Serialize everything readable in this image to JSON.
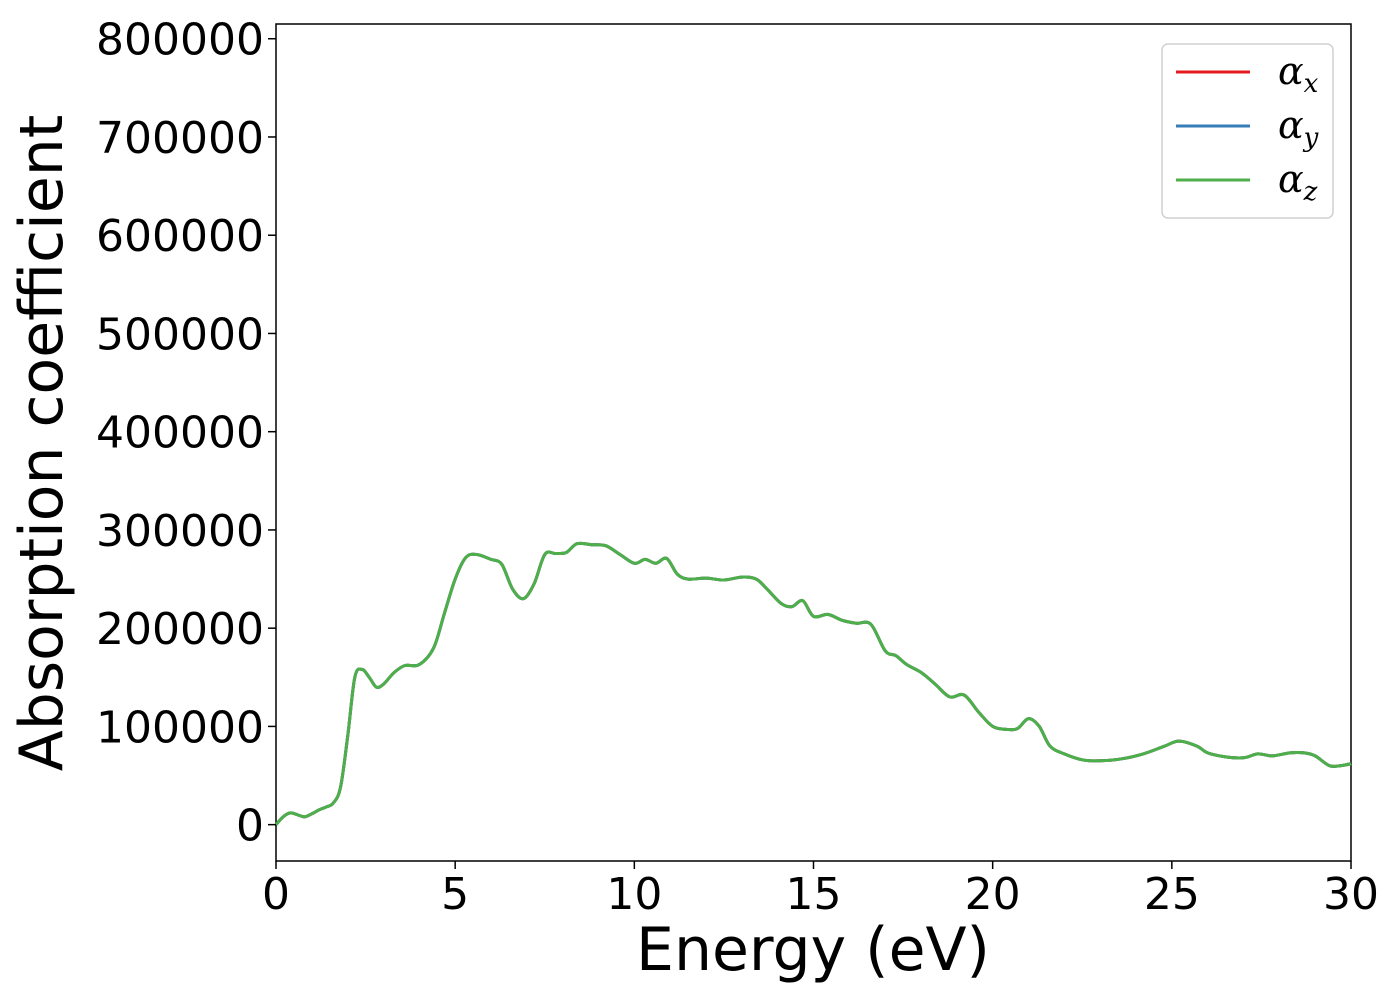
{
  "chart_data": {
    "type": "line",
    "title": "",
    "xlabel": "Energy (eV)",
    "ylabel": "Absorption coefficient",
    "xlim": [
      0,
      30
    ],
    "ylim": [
      -37000,
      815000
    ],
    "xticks": [
      "0",
      "5",
      "10",
      "15",
      "20",
      "25",
      "30"
    ],
    "yticks": [
      "0",
      "100000",
      "200000",
      "300000",
      "400000",
      "500000",
      "600000",
      "700000",
      "800000"
    ],
    "grid": false,
    "legend_position": "top-right",
    "x": [
      0,
      0.2,
      0.4,
      0.6,
      0.8,
      1.0,
      1.2,
      1.4,
      1.6,
      1.8,
      2.0,
      2.2,
      2.4,
      2.6,
      2.8,
      3.0,
      3.3,
      3.6,
      4.0,
      4.4,
      4.7,
      5.0,
      5.3,
      5.6,
      6.0,
      6.3,
      6.6,
      6.9,
      7.2,
      7.5,
      7.8,
      8.1,
      8.4,
      8.8,
      9.2,
      9.6,
      10.0,
      10.3,
      10.6,
      10.9,
      11.2,
      11.5,
      12.0,
      12.5,
      13.0,
      13.4,
      13.7,
      14.1,
      14.4,
      14.7,
      15.0,
      15.4,
      15.8,
      16.2,
      16.6,
      17.0,
      17.3,
      17.6,
      18.0,
      18.4,
      18.8,
      19.2,
      19.6,
      20.0,
      20.4,
      20.7,
      21.0,
      21.3,
      21.6,
      22.0,
      22.5,
      23.0,
      23.6,
      24.2,
      24.8,
      25.2,
      25.7,
      26.0,
      26.5,
      27.0,
      27.4,
      27.8,
      28.3,
      28.7,
      29.0,
      29.4,
      29.7,
      30.0
    ],
    "series": [
      {
        "name": "αx",
        "color": "#e41a1c",
        "values": [
          0,
          8000,
          12000,
          10000,
          8000,
          11000,
          15000,
          18000,
          22000,
          38000,
          90000,
          150000,
          158000,
          150000,
          140000,
          143000,
          155000,
          162000,
          163000,
          180000,
          215000,
          250000,
          272000,
          275000,
          270000,
          265000,
          240000,
          230000,
          245000,
          275000,
          276000,
          277000,
          286000,
          285000,
          284000,
          275000,
          266000,
          270000,
          266000,
          271000,
          255000,
          250000,
          251000,
          249000,
          252000,
          250000,
          240000,
          225000,
          222000,
          228000,
          212000,
          214000,
          208000,
          205000,
          204000,
          177000,
          172000,
          163000,
          155000,
          143000,
          130000,
          132000,
          115000,
          100000,
          97000,
          98000,
          108000,
          100000,
          80000,
          72000,
          66000,
          65000,
          67000,
          72000,
          80000,
          85000,
          80000,
          73000,
          69000,
          68000,
          72000,
          70000,
          73000,
          73000,
          70000,
          60000,
          60000,
          62000
        ]
      },
      {
        "name": "αy",
        "color": "#377eb8",
        "values": [
          0,
          8000,
          12000,
          10000,
          8000,
          11000,
          15000,
          18000,
          22000,
          38000,
          90000,
          150000,
          158000,
          150000,
          140000,
          143000,
          155000,
          162000,
          163000,
          180000,
          215000,
          250000,
          272000,
          275000,
          270000,
          265000,
          240000,
          230000,
          245000,
          275000,
          276000,
          277000,
          286000,
          285000,
          284000,
          275000,
          266000,
          270000,
          266000,
          271000,
          255000,
          250000,
          251000,
          249000,
          252000,
          250000,
          240000,
          225000,
          222000,
          228000,
          212000,
          214000,
          208000,
          205000,
          204000,
          177000,
          172000,
          163000,
          155000,
          143000,
          130000,
          132000,
          115000,
          100000,
          97000,
          98000,
          108000,
          100000,
          80000,
          72000,
          66000,
          65000,
          67000,
          72000,
          80000,
          85000,
          80000,
          73000,
          69000,
          68000,
          72000,
          70000,
          73000,
          73000,
          70000,
          60000,
          60000,
          62000
        ]
      },
      {
        "name": "αz",
        "color": "#4daf4a",
        "values": [
          0,
          8000,
          12000,
          10000,
          8000,
          11000,
          15000,
          18000,
          22000,
          38000,
          90000,
          150000,
          158000,
          150000,
          140000,
          143000,
          155000,
          162000,
          163000,
          180000,
          215000,
          250000,
          272000,
          275000,
          270000,
          265000,
          240000,
          230000,
          245000,
          275000,
          276000,
          277000,
          286000,
          285000,
          284000,
          275000,
          266000,
          270000,
          266000,
          271000,
          255000,
          250000,
          251000,
          249000,
          252000,
          250000,
          240000,
          225000,
          222000,
          228000,
          212000,
          214000,
          208000,
          205000,
          204000,
          177000,
          172000,
          163000,
          155000,
          143000,
          130000,
          132000,
          115000,
          100000,
          97000,
          98000,
          108000,
          100000,
          80000,
          72000,
          66000,
          65000,
          67000,
          72000,
          80000,
          85000,
          80000,
          73000,
          69000,
          68000,
          72000,
          70000,
          73000,
          73000,
          70000,
          60000,
          60000,
          62000
        ]
      }
    ],
    "legend": [
      {
        "symbol": "α",
        "sub": "x",
        "color": "#e41a1c"
      },
      {
        "symbol": "α",
        "sub": "y",
        "color": "#377eb8"
      },
      {
        "symbol": "α",
        "sub": "z",
        "color": "#4daf4a"
      }
    ]
  }
}
